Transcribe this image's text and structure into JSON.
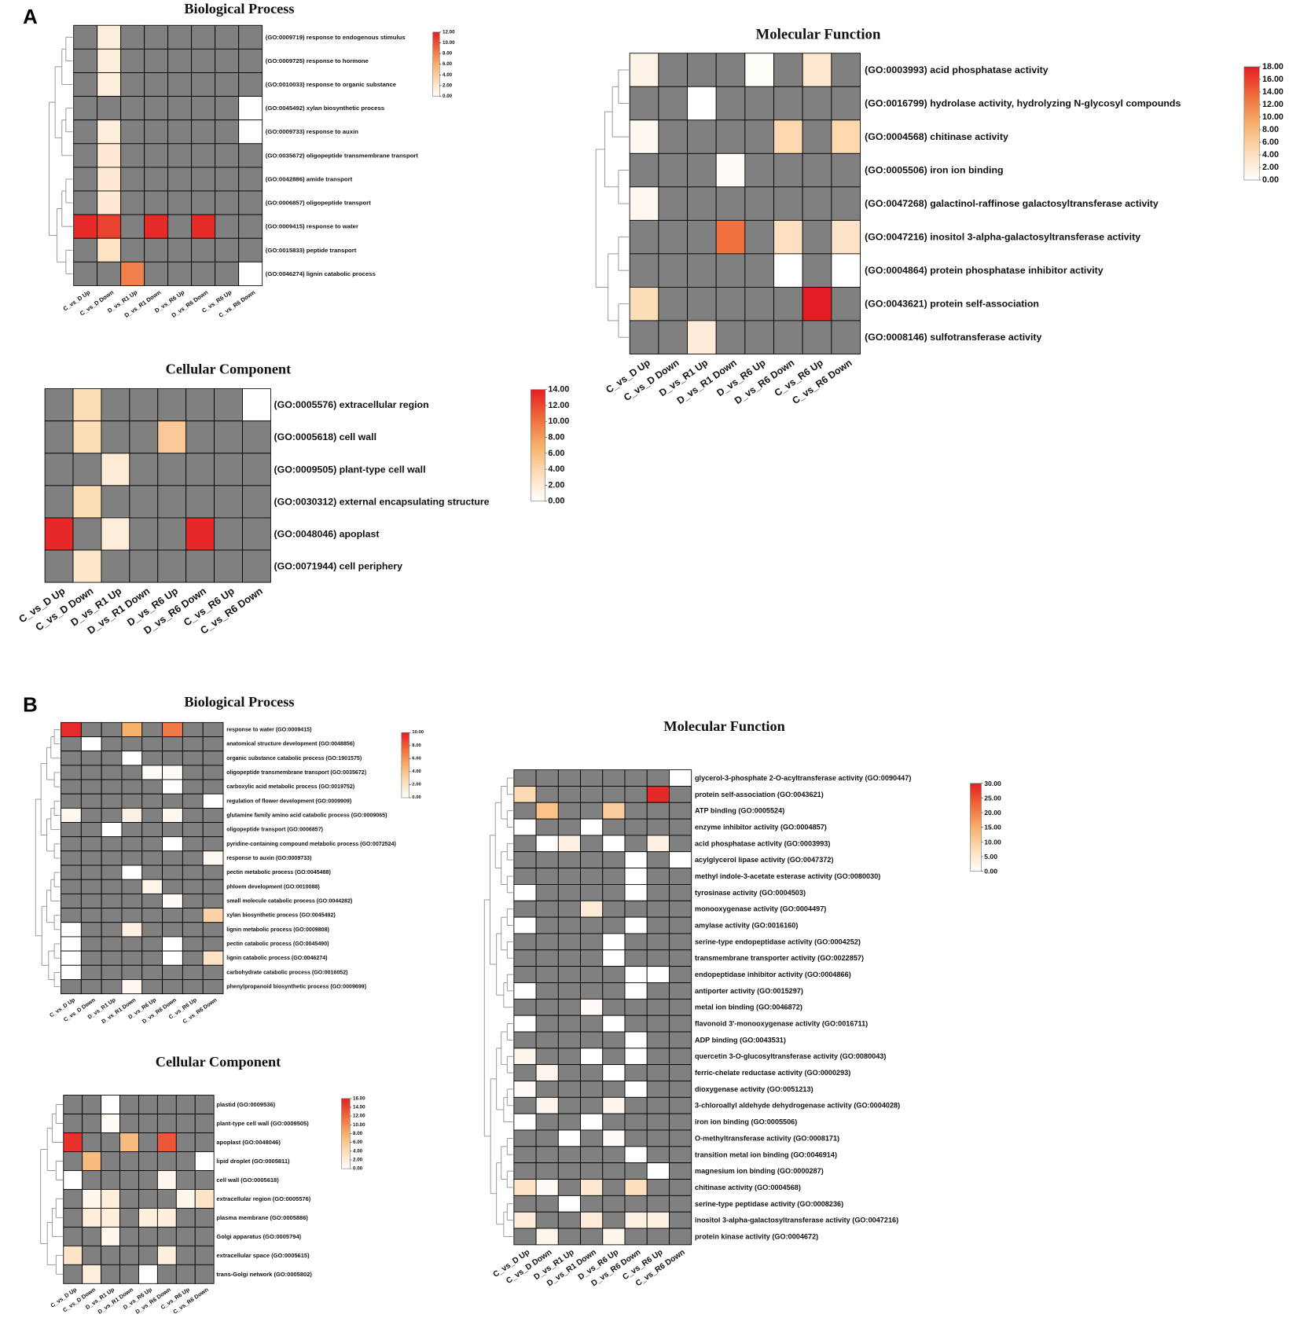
{
  "figure": {
    "panel_labels": [
      "A",
      "B"
    ]
  },
  "colors": {
    "na": "#808080",
    "low": "#ffffff",
    "mid": "#f6b06a",
    "high": "#e41e25",
    "cell_border": "#000000"
  },
  "chart_data": [
    {
      "type": "heatmap",
      "title": "Biological Process",
      "columns": [
        "C_vs_D Up",
        "C_vs_D Down",
        "D_vs_R1 Up",
        "D_vs_R1 Down",
        "D_vs_R6 Up",
        "D_vs_R6 Down",
        "C_vs_R6 Up",
        "C_vs_R6 Down"
      ],
      "rows": [
        "(GO:0009719) response to endogenous stimulus",
        "(GO:0009725) response to hormone",
        "(GO:0010033) response to organic substance",
        "(GO:0045492) xylan biosynthetic process",
        "(GO:0009733) response to auxin",
        "(GO:0035672) oligopeptide transmembrane transport",
        "(GO:0042886) amide transport",
        "(GO:0006857) oligopeptide transport",
        "(GO:0009415) response to water",
        "(GO:0015833) peptide transport",
        "(GO:0046274) lignin catabolic process"
      ],
      "values": [
        [
          null,
          1.5,
          null,
          null,
          null,
          null,
          null,
          null
        ],
        [
          null,
          1.5,
          null,
          null,
          null,
          null,
          null,
          null
        ],
        [
          null,
          1.5,
          null,
          null,
          null,
          null,
          null,
          null
        ],
        [
          null,
          null,
          null,
          null,
          null,
          null,
          null,
          0
        ],
        [
          null,
          1.5,
          null,
          null,
          null,
          null,
          null,
          0
        ],
        [
          null,
          1.8,
          null,
          null,
          null,
          null,
          null,
          null
        ],
        [
          null,
          1.8,
          null,
          null,
          null,
          null,
          null,
          null
        ],
        [
          null,
          1.8,
          null,
          null,
          null,
          null,
          null,
          null
        ],
        [
          11.5,
          10.5,
          null,
          11.5,
          null,
          11.5,
          null,
          null
        ],
        [
          null,
          2.5,
          null,
          null,
          null,
          null,
          null,
          null
        ],
        [
          null,
          null,
          8,
          null,
          null,
          null,
          null,
          0
        ]
      ],
      "scale": {
        "min": 0,
        "max": 12,
        "tick_labels": [
          "0.00",
          "2.00",
          "4.00",
          "6.00",
          "8.00",
          "10.00",
          "12.00"
        ]
      }
    },
    {
      "type": "heatmap",
      "title": "Molecular Function",
      "columns": [
        "C_vs_D Up",
        "C_vs_D Down",
        "D_vs_R1 Up",
        "D_vs_R1 Down",
        "D_vs_R6 Up",
        "D_vs_R6 Down",
        "C_vs_R6 Up",
        "C_vs_R6 Down"
      ],
      "rows": [
        "(GO:0003993) acid phosphatase activity",
        "(GO:0016799) hydrolase activity, hydrolyzing N-glycosyl compounds",
        "(GO:0004568) chitinase activity",
        "(GO:0005506) iron ion binding",
        "(GO:0047268) galactinol-raffinose galactosyltransferase activity",
        "(GO:0047216) inositol 3-alpha-galactosyltransferase activity",
        "(GO:0004864) protein phosphatase inhibitor activity",
        "(GO:0043621) protein self-association",
        "(GO:0008146) sulfotransferase activity"
      ],
      "values": [
        [
          1.5,
          null,
          null,
          null,
          0.3,
          null,
          3,
          null
        ],
        [
          null,
          null,
          0,
          null,
          null,
          null,
          null,
          null
        ],
        [
          0.8,
          null,
          null,
          null,
          null,
          5,
          null,
          5
        ],
        [
          null,
          null,
          null,
          0.5,
          null,
          null,
          null,
          null
        ],
        [
          0.8,
          null,
          null,
          null,
          null,
          null,
          null,
          null
        ],
        [
          null,
          null,
          null,
          13,
          null,
          4,
          null,
          3.5
        ],
        [
          null,
          null,
          null,
          null,
          null,
          0,
          null,
          0
        ],
        [
          4.5,
          null,
          null,
          null,
          null,
          null,
          18,
          null
        ],
        [
          null,
          null,
          2.5,
          null,
          null,
          null,
          null,
          null
        ]
      ],
      "scale": {
        "min": 0,
        "max": 18,
        "tick_labels": [
          "0.00",
          "2.00",
          "4.00",
          "6.00",
          "8.00",
          "10.00",
          "12.00",
          "14.00",
          "16.00",
          "18.00"
        ]
      }
    },
    {
      "type": "heatmap",
      "title": "Cellular Component",
      "columns": [
        "C_vs_D Up",
        "C_vs_D Down",
        "D_vs_R1 Up",
        "D_vs_R1 Down",
        "D_vs_R6 Up",
        "D_vs_R6 Down",
        "C_vs_R6 Up",
        "C_vs_R6 Down"
      ],
      "rows": [
        "(GO:0005576) extracellular region",
        "(GO:0005618) cell wall",
        "(GO:0009505) plant-type cell wall",
        "(GO:0030312) external encapsulating structure",
        "(GO:0048046) apoplast",
        "(GO:0071944) cell periphery"
      ],
      "values": [
        [
          null,
          3.5,
          null,
          null,
          null,
          null,
          null,
          0
        ],
        [
          null,
          3.5,
          null,
          null,
          5,
          null,
          null,
          null
        ],
        [
          null,
          null,
          2,
          null,
          null,
          null,
          null,
          null
        ],
        [
          null,
          3.5,
          null,
          null,
          null,
          null,
          null,
          null
        ],
        [
          13.5,
          null,
          1.8,
          null,
          null,
          13.5,
          null,
          null
        ],
        [
          null,
          2.5,
          null,
          null,
          null,
          null,
          null,
          null
        ]
      ],
      "scale": {
        "min": 0,
        "max": 14,
        "tick_labels": [
          "0.00",
          "2.00",
          "4.00",
          "6.00",
          "8.00",
          "10.00",
          "12.00",
          "14.00"
        ]
      }
    },
    {
      "type": "heatmap",
      "title": "Biological Process",
      "columns": [
        "C_vs_D Up",
        "C_vs_D Down",
        "D_vs_R1 Up",
        "D_vs_R1 Down",
        "D_vs_R6 Up",
        "D_vs_R6 Down",
        "C_vs_R6 Up",
        "C_vs_R6 Down"
      ],
      "rows": [
        "response to water (GO:0009415)",
        "anatomical structure development (GO:0048856)",
        "organic substance catabolic process (GO:1901575)",
        "oligopeptide transmembrane transport (GO:0035672)",
        "carboxylic acid metabolic process (GO:0019752)",
        "regulation of flower development (GO:0009909)",
        "glutamine family amino acid catabolic process (GO:0009065)",
        "oligopeptide transport (GO:0006857)",
        "pyridine-containing compound metabolic process (GO:0072524)",
        "response to auxin (GO:0009733)",
        "pectin metabolic process (GO:0045488)",
        "phloem development (GO:0010088)",
        "small molecule catabolic process (GO:0044282)",
        "xylan biosynthetic process (GO:0045492)",
        "lignin metabolic process (GO:0009808)",
        "pectin catabolic process (GO:0045490)",
        "lignin catabolic process (GO:0046274)",
        "carbohydrate catabolic process (GO:0016052)",
        "phenylpropanoid biosynthetic process (GO:0009699)"
      ],
      "values": [
        [
          9.5,
          null,
          null,
          5,
          null,
          7,
          null,
          null
        ],
        [
          null,
          0,
          null,
          null,
          null,
          null,
          null,
          null
        ],
        [
          null,
          null,
          null,
          0,
          null,
          null,
          null,
          null
        ],
        [
          null,
          null,
          null,
          null,
          0.3,
          0.3,
          null,
          null
        ],
        [
          null,
          null,
          null,
          null,
          null,
          0,
          null,
          null
        ],
        [
          null,
          null,
          null,
          null,
          null,
          null,
          null,
          0
        ],
        [
          0.5,
          null,
          null,
          1,
          null,
          0.5,
          null,
          null
        ],
        [
          null,
          null,
          0,
          null,
          null,
          null,
          null,
          null
        ],
        [
          null,
          null,
          null,
          null,
          null,
          0,
          null,
          null
        ],
        [
          null,
          null,
          null,
          null,
          null,
          null,
          null,
          0.5
        ],
        [
          null,
          null,
          null,
          0,
          null,
          null,
          null,
          null
        ],
        [
          null,
          null,
          null,
          null,
          0.8,
          null,
          null,
          null
        ],
        [
          null,
          null,
          null,
          null,
          null,
          0.3,
          null,
          null
        ],
        [
          null,
          null,
          null,
          null,
          null,
          null,
          null,
          3
        ],
        [
          0,
          null,
          null,
          1,
          null,
          null,
          null,
          null
        ],
        [
          0,
          null,
          null,
          null,
          null,
          0,
          null,
          null
        ],
        [
          0,
          null,
          null,
          null,
          null,
          0,
          null,
          2
        ],
        [
          0,
          null,
          null,
          null,
          null,
          null,
          null,
          null
        ],
        [
          null,
          null,
          null,
          0.5,
          null,
          null,
          null,
          null
        ]
      ],
      "scale": {
        "min": 0,
        "max": 10,
        "tick_labels": [
          "0.00",
          "2.00",
          "4.00",
          "6.00",
          "8.00",
          "10.00"
        ]
      }
    },
    {
      "type": "heatmap",
      "title": "Cellular Component",
      "columns": [
        "C_vs_D Up",
        "C_vs_D Down",
        "D_vs_R1 Up",
        "D_vs_R1 Down",
        "D_vs_R6 Up",
        "D_vs_R6 Down",
        "C_vs_R6 Up",
        "C_vs_R6 Down"
      ],
      "rows": [
        "plastid (GO:0009536)",
        "plant-type cell wall (GO:0009505)",
        "apoplast (GO:0048046)",
        "lipid droplet (GO:0005811)",
        "cell wall (GO:0005618)",
        "extracellular region (GO:0005576)",
        "plasma membrane (GO:0005886)",
        "Golgi apparatus (GO:0005794)",
        "extracellular space (GO:0005615)",
        "trans-Golgi network (GO:0005802)"
      ],
      "values": [
        [
          null,
          null,
          0,
          null,
          null,
          null,
          null,
          null
        ],
        [
          null,
          null,
          0.5,
          null,
          null,
          null,
          null,
          null
        ],
        [
          15,
          null,
          null,
          7,
          null,
          13,
          null,
          null
        ],
        [
          null,
          7,
          null,
          null,
          null,
          null,
          null,
          0
        ],
        [
          0,
          null,
          null,
          null,
          null,
          1,
          null,
          null
        ],
        [
          null,
          1,
          2,
          null,
          null,
          null,
          1,
          3
        ],
        [
          null,
          2,
          2,
          null,
          2,
          2,
          null,
          null
        ],
        [
          null,
          null,
          1,
          null,
          null,
          null,
          null,
          null
        ],
        [
          3,
          null,
          null,
          null,
          null,
          2,
          null,
          null
        ],
        [
          null,
          2,
          null,
          null,
          0,
          null,
          null,
          null
        ]
      ],
      "scale": {
        "min": 0,
        "max": 16,
        "tick_labels": [
          "0.00",
          "2.00",
          "4.00",
          "6.00",
          "8.00",
          "10.00",
          "12.00",
          "14.00",
          "16.00"
        ]
      }
    },
    {
      "type": "heatmap",
      "title": "Molecular Function",
      "columns": [
        "C_vs_D Up",
        "C_vs_D Down",
        "D_vs_R1 Up",
        "D_vs_R1 Down",
        "D_vs_R6 Up",
        "D_vs_R6 Down",
        "C_vs_R6 Up",
        "C_vs_R6 Down"
      ],
      "rows": [
        "glycerol-3-phosphate 2-O-acyltransferase activity (GO:0090447)",
        "protein self-association (GO:0043621)",
        "ATP binding (GO:0005524)",
        "enzyme inhibitor activity (GO:0004857)",
        "acid phosphatase activity (GO:0003993)",
        "acylglycerol lipase activity (GO:0047372)",
        "methyl indole-3-acetate esterase activity (GO:0080030)",
        "tyrosinase activity (GO:0004503)",
        "monooxygenase activity (GO:0004497)",
        "amylase activity (GO:0016160)",
        "serine-type endopeptidase activity (GO:0004252)",
        "transmembrane transporter activity (GO:0022857)",
        "endopeptidase inhibitor activity (GO:0004866)",
        "antiporter activity (GO:0015297)",
        "metal ion binding (GO:0046872)",
        "flavonoid 3'-monooxygenase activity (GO:0016711)",
        "ADP binding (GO:0043531)",
        "quercetin 3-O-glucosyltransferase activity (GO:0080043)",
        "ferric-chelate reductase activity (GO:0000293)",
        "dioxygenase activity (GO:0051213)",
        "3-chloroallyl aldehyde dehydrogenase activity (GO:0004028)",
        "iron ion binding (GO:0005506)",
        "O-methyltransferase activity (GO:0008171)",
        "transition metal ion binding (GO:0046914)",
        "magnesium ion binding (GO:0000287)",
        "chitinase activity (GO:0004568)",
        "serine-type peptidase activity (GO:0008236)",
        "inositol 3-alpha-galactosyltransferase activity (GO:0047216)",
        "protein kinase activity (GO:0004672)"
      ],
      "values": [
        [
          null,
          null,
          null,
          null,
          null,
          null,
          null,
          0
        ],
        [
          8,
          null,
          null,
          null,
          null,
          null,
          29,
          null
        ],
        [
          null,
          12,
          null,
          null,
          10,
          null,
          null,
          null
        ],
        [
          0,
          null,
          null,
          0,
          null,
          null,
          null,
          null
        ],
        [
          null,
          0,
          3,
          null,
          0,
          null,
          3,
          null
        ],
        [
          null,
          null,
          null,
          null,
          null,
          0,
          null,
          0
        ],
        [
          null,
          null,
          null,
          null,
          null,
          0,
          null,
          null
        ],
        [
          0,
          null,
          null,
          null,
          null,
          0,
          null,
          null
        ],
        [
          null,
          null,
          null,
          4,
          null,
          null,
          null,
          null
        ],
        [
          0,
          null,
          null,
          null,
          null,
          0,
          null,
          null
        ],
        [
          null,
          null,
          null,
          null,
          0,
          null,
          null,
          null
        ],
        [
          null,
          null,
          null,
          null,
          0,
          null,
          null,
          null
        ],
        [
          null,
          null,
          null,
          null,
          null,
          0,
          0,
          null
        ],
        [
          0,
          null,
          null,
          null,
          null,
          0,
          null,
          null
        ],
        [
          null,
          null,
          null,
          1,
          null,
          null,
          null,
          null
        ],
        [
          0,
          null,
          null,
          null,
          0,
          null,
          null,
          null
        ],
        [
          null,
          null,
          null,
          null,
          null,
          0,
          null,
          null
        ],
        [
          2,
          null,
          null,
          0,
          null,
          0,
          null,
          null
        ],
        [
          null,
          2,
          null,
          null,
          0,
          null,
          null,
          null
        ],
        [
          1,
          null,
          null,
          null,
          null,
          0,
          null,
          null
        ],
        [
          null,
          2,
          null,
          null,
          2,
          null,
          null,
          null
        ],
        [
          0,
          null,
          null,
          0,
          null,
          null,
          null,
          null
        ],
        [
          null,
          null,
          0,
          null,
          1,
          null,
          null,
          null
        ],
        [
          null,
          null,
          null,
          null,
          null,
          0,
          null,
          null
        ],
        [
          null,
          null,
          null,
          null,
          null,
          null,
          0,
          null
        ],
        [
          6,
          1,
          null,
          5,
          null,
          7,
          null,
          null
        ],
        [
          null,
          null,
          0,
          null,
          null,
          null,
          null,
          null
        ],
        [
          4,
          null,
          null,
          4,
          null,
          3,
          3,
          null
        ],
        [
          null,
          2,
          null,
          null,
          2,
          null,
          null,
          null
        ]
      ],
      "scale": {
        "min": 0,
        "max": 30,
        "tick_labels": [
          "0.00",
          "5.00",
          "10.00",
          "15.00",
          "20.00",
          "25.00",
          "30.00"
        ]
      }
    }
  ]
}
